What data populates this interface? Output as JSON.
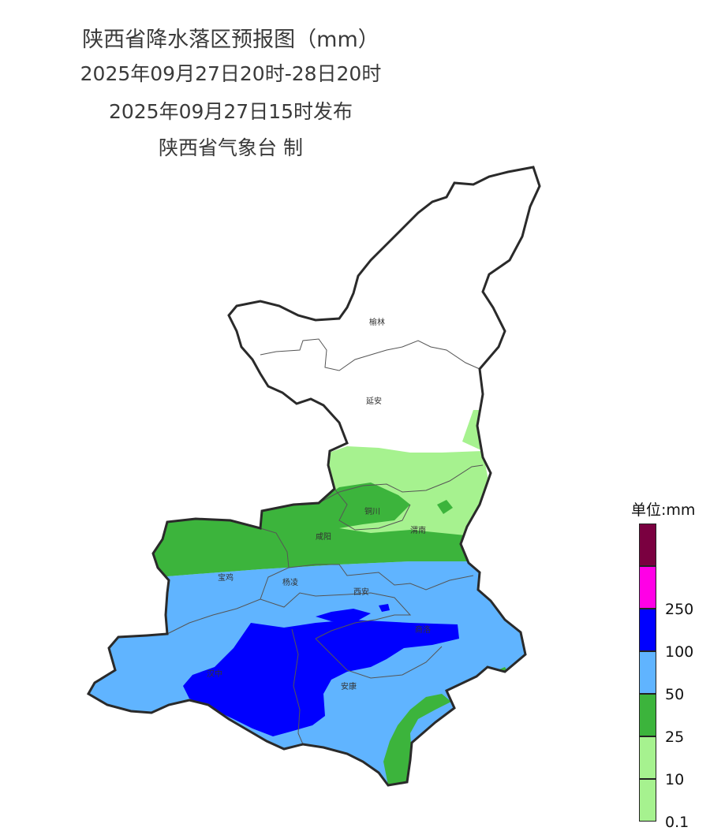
{
  "title": {
    "line1": "陕西省降水落区预报图（mm）",
    "line2": "2025年09月27日20时-28日20时",
    "line3": "2025年09月27日15时发布",
    "line4": "陕西省气象台 制"
  },
  "cities": [
    {
      "id": "yulin",
      "name": "榆林"
    },
    {
      "id": "yanan",
      "name": "延安"
    },
    {
      "id": "tongchuan",
      "name": "铜川"
    },
    {
      "id": "weinan",
      "name": "渭南"
    },
    {
      "id": "xianyang",
      "name": "咸阳"
    },
    {
      "id": "baoji",
      "name": "宝鸡"
    },
    {
      "id": "yangling",
      "name": "杨凌"
    },
    {
      "id": "xian",
      "name": "西安"
    },
    {
      "id": "shangluo",
      "name": "商洛"
    },
    {
      "id": "hanzhong",
      "name": "汉中"
    },
    {
      "id": "ankang",
      "name": "安康"
    }
  ],
  "legend": {
    "title": "单位:mm",
    "levels": [
      {
        "label": "",
        "color": "#7a0040"
      },
      {
        "label": "250",
        "color": "#ff00e6"
      },
      {
        "label": "100",
        "color": "#0000ff"
      },
      {
        "label": "50",
        "color": "#60b4ff"
      },
      {
        "label": "25",
        "color": "#3cb43c"
      },
      {
        "label": "10",
        "color": "#a6f28f"
      },
      {
        "label": "0.1",
        "color": ""
      }
    ]
  }
}
